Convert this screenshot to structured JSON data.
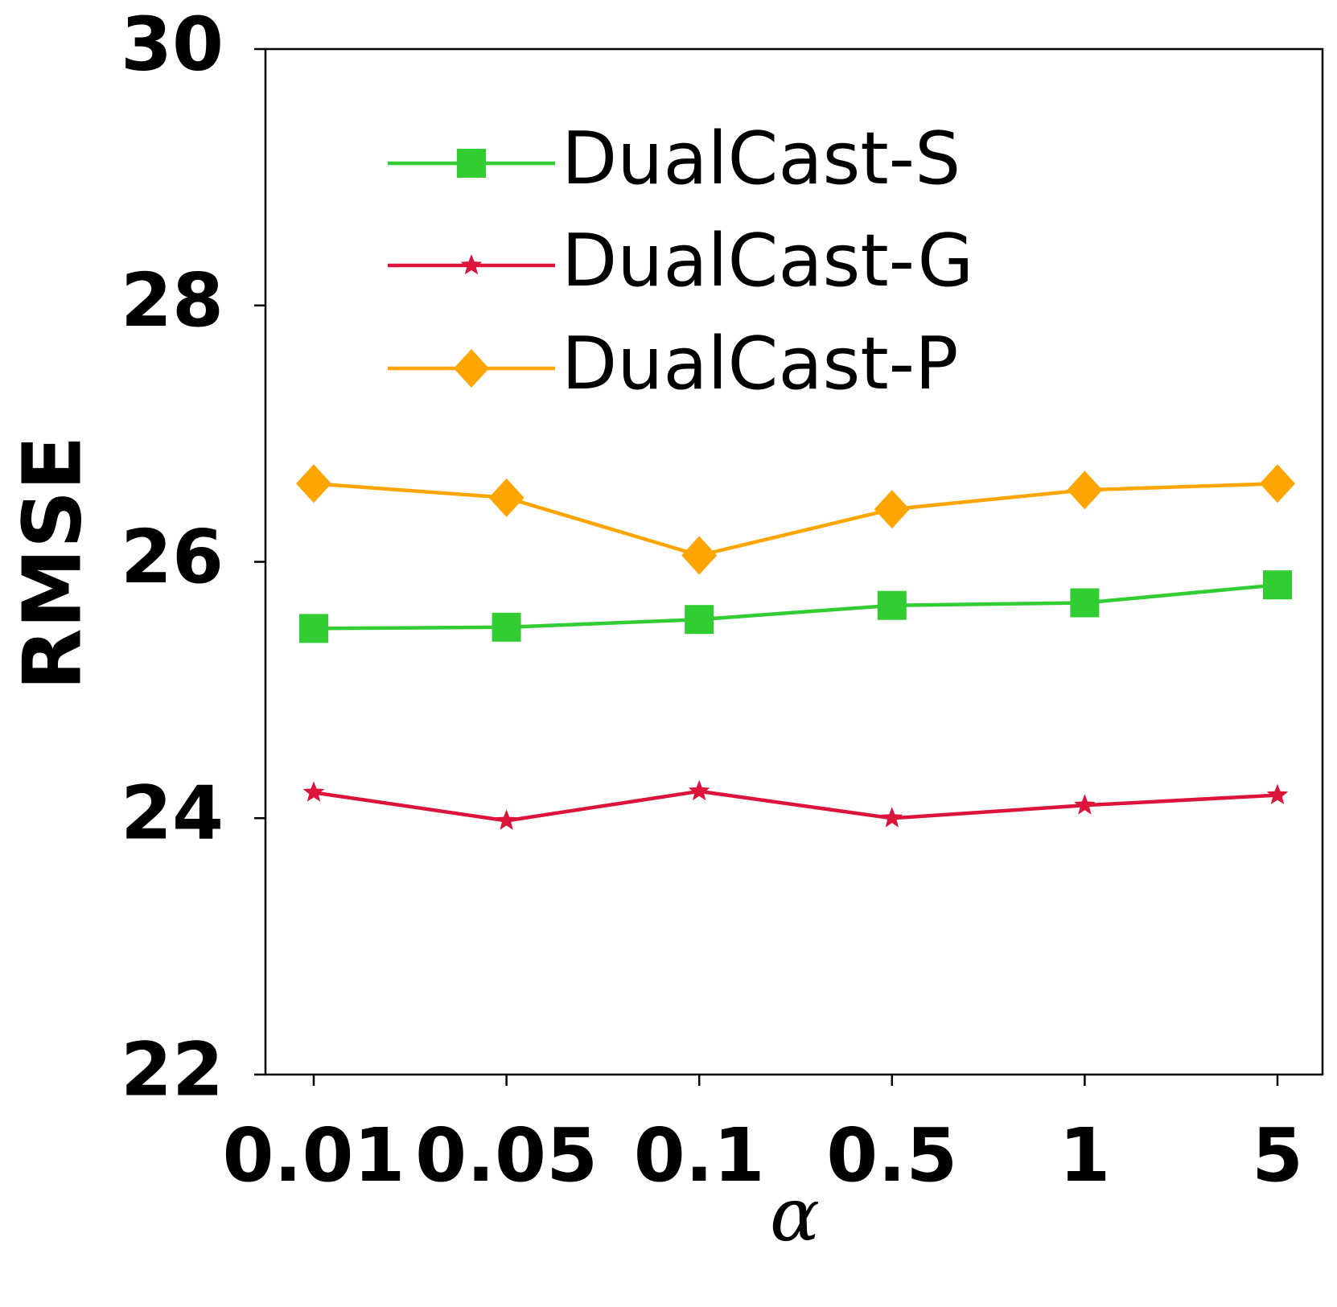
{
  "chart_data": {
    "type": "line",
    "title": "",
    "xlabel": "α",
    "ylabel": "RMSE",
    "categories": [
      "0.01",
      "0.05",
      "0.1",
      "0.5",
      "1",
      "5"
    ],
    "ylim": [
      22,
      30
    ],
    "yticks": [
      22,
      24,
      26,
      28,
      30
    ],
    "ytick_labels": [
      "22",
      "24",
      "26",
      "28",
      "30"
    ],
    "grid": false,
    "legend_position": "upper-center",
    "series": [
      {
        "name": "DualCast-S",
        "color": "#32cd32",
        "marker": "square",
        "values": [
          25.48,
          25.49,
          25.55,
          25.66,
          25.68,
          25.82
        ]
      },
      {
        "name": "DualCast-G",
        "color": "#dc143c",
        "marker": "star",
        "values": [
          24.2,
          23.98,
          24.21,
          24.0,
          24.1,
          24.18
        ]
      },
      {
        "name": "DualCast-P",
        "color": "#ffa500",
        "marker": "diamond",
        "values": [
          26.61,
          26.5,
          26.05,
          26.41,
          26.56,
          26.61
        ]
      }
    ]
  }
}
